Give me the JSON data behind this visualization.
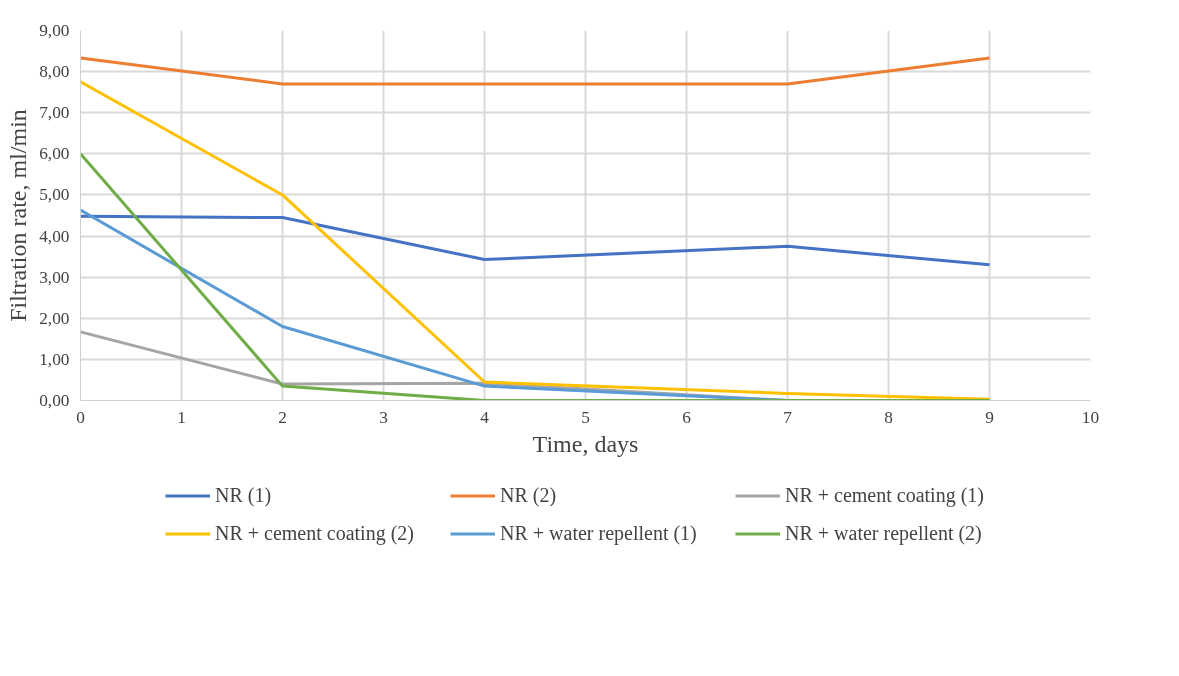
{
  "chart_data": {
    "type": "line",
    "xlabel": "Time, days",
    "ylabel": "Filtration rate, ml/min",
    "x": [
      0,
      2,
      4,
      7,
      9
    ],
    "series": [
      {
        "name": "NR (1)",
        "color": "#4472c4",
        "values": [
          4.48,
          4.45,
          3.43,
          3.75,
          3.3
        ]
      },
      {
        "name": "NR (2)",
        "color": "#ed7d31",
        "values": [
          8.33,
          7.7,
          7.7,
          7.7,
          8.33
        ]
      },
      {
        "name": "NR + cement coating (1)",
        "color": "#a5a5a5",
        "values": [
          1.67,
          0.4,
          0.42,
          0.0,
          0.0
        ]
      },
      {
        "name": "NR + cement coating (2)",
        "color": "#ffc000",
        "values": [
          7.75,
          5.0,
          0.45,
          0.17,
          0.03
        ]
      },
      {
        "name": "NR + water repellent (1)",
        "color": "#5b9bd5",
        "values": [
          4.63,
          1.8,
          0.35,
          0.0,
          0.0
        ]
      },
      {
        "name": "NR + water repellent (2)",
        "color": "#70ad47",
        "values": [
          6.0,
          0.35,
          0.0,
          0.0,
          0.0
        ]
      }
    ],
    "xlim": [
      0,
      10
    ],
    "xticks": [
      0,
      1,
      2,
      3,
      4,
      5,
      6,
      7,
      8,
      9,
      10
    ],
    "ylim": [
      0,
      9
    ],
    "yticks": [
      {
        "value": 0,
        "label": "0,00"
      },
      {
        "value": 1,
        "label": "1,00"
      },
      {
        "value": 2,
        "label": "2,00"
      },
      {
        "value": 3,
        "label": "3,00"
      },
      {
        "value": 4,
        "label": "4,00"
      },
      {
        "value": 5,
        "label": "5,00"
      },
      {
        "value": 6,
        "label": "6,00"
      },
      {
        "value": 7,
        "label": "7,00"
      },
      {
        "value": 8,
        "label": "8,00"
      },
      {
        "value": 9,
        "label": "9,00"
      }
    ],
    "grid": true,
    "legend": "bottom",
    "marker": "none",
    "line_style": "solid"
  }
}
